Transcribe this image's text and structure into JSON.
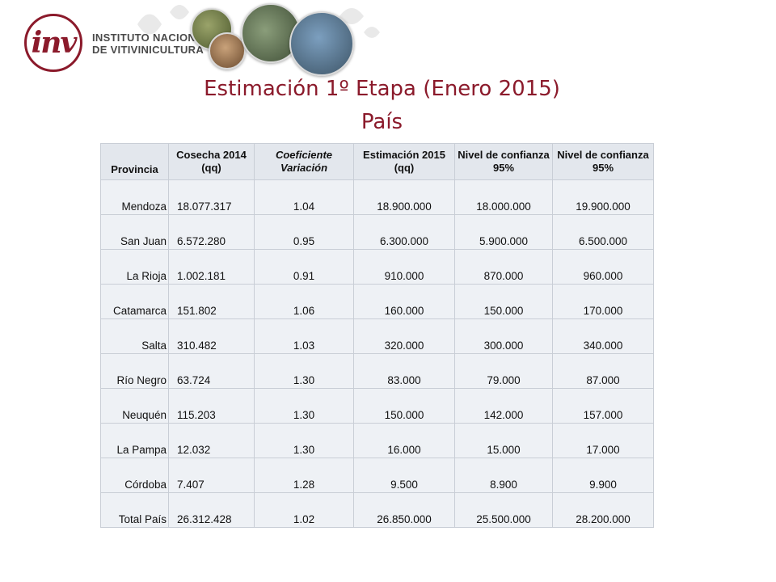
{
  "header": {
    "logo_mark": "inv",
    "org_line1": "INSTITUTO NACIONAL",
    "org_line2": "DE VITIVINICULTURA"
  },
  "title": {
    "line1": "Estimación 1º Etapa (Enero 2015)",
    "line2": "País"
  },
  "colors": {
    "accent": "#8b1a2b",
    "table_bg": "#eef1f5",
    "header_bg": "#e3e7ed"
  },
  "table": {
    "headers": [
      "Provincia",
      "Cosecha 2014 (qq)",
      "Coeficiente Variación",
      "Estimación 2015 (qq)",
      "Nivel de confianza 95%",
      "Nivel de confianza 95%"
    ],
    "rows": [
      [
        "Mendoza",
        "18.077.317",
        "1.04",
        "18.900.000",
        "18.000.000",
        "19.900.000"
      ],
      [
        "San Juan",
        "6.572.280",
        "0.95",
        "6.300.000",
        "5.900.000",
        "6.500.000"
      ],
      [
        "La Rioja",
        "1.002.181",
        "0.91",
        "910.000",
        "870.000",
        "960.000"
      ],
      [
        "Catamarca",
        "151.802",
        "1.06",
        "160.000",
        "150.000",
        "170.000"
      ],
      [
        "Salta",
        "310.482",
        "1.03",
        "320.000",
        "300.000",
        "340.000"
      ],
      [
        "Río Negro",
        "63.724",
        "1.30",
        "83.000",
        "79.000",
        "87.000"
      ],
      [
        "Neuquén",
        "115.203",
        "1.30",
        "150.000",
        "142.000",
        "157.000"
      ],
      [
        "La Pampa",
        "12.032",
        "1.30",
        "16.000",
        "15.000",
        "17.000"
      ],
      [
        "Córdoba",
        "7.407",
        "1.28",
        "9.500",
        "8.900",
        "9.900"
      ],
      [
        "Total País",
        "26.312.428",
        "1.02",
        "26.850.000",
        "25.500.000",
        "28.200.000"
      ]
    ]
  }
}
